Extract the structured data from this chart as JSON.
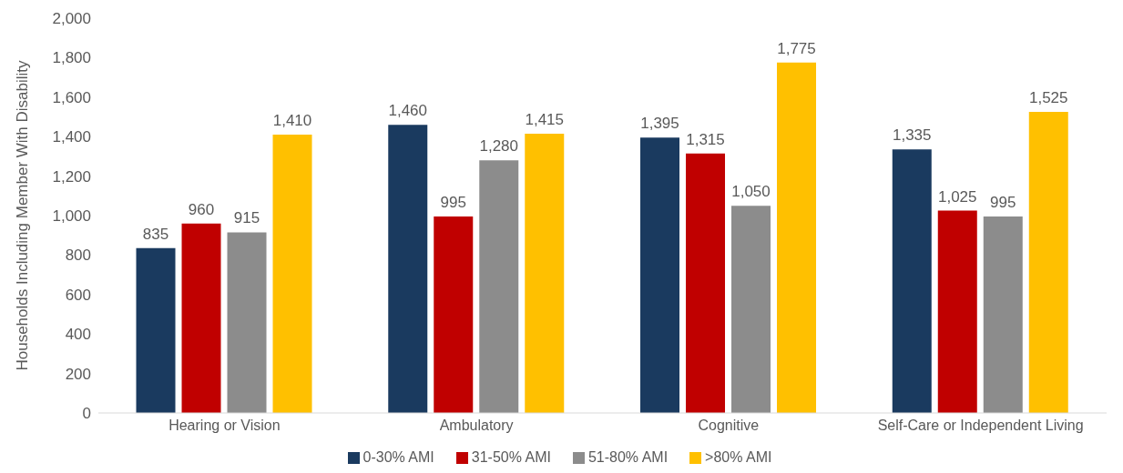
{
  "chart_data": {
    "type": "bar",
    "ylabel": "Households Including Member With Disability",
    "categories": [
      "Hearing or Vision",
      "Ambulatory",
      "Cognitive",
      "Self-Care or Independent Living"
    ],
    "series": [
      {
        "name": "0-30% AMI",
        "color": "#1a3a5f",
        "values": [
          835,
          1460,
          1395,
          1335
        ],
        "value_labels": [
          "835",
          "1,460",
          "1,395",
          "1,335"
        ]
      },
      {
        "name": "31-50% AMI",
        "color": "#c00000",
        "values": [
          960,
          995,
          1315,
          1025
        ],
        "value_labels": [
          "960",
          "995",
          "1,315",
          "1,025"
        ]
      },
      {
        "name": "51-80% AMI",
        "color": "#8c8c8c",
        "values": [
          915,
          1280,
          1050,
          995
        ],
        "value_labels": [
          "915",
          "1,280",
          "1,050",
          "995"
        ]
      },
      {
        "name": ">80% AMI",
        "color": "#ffc000",
        "values": [
          1410,
          1415,
          1775,
          1525
        ],
        "value_labels": [
          "1,410",
          "1,415",
          "1,775",
          "1,525"
        ]
      }
    ],
    "ylim": [
      0,
      2000
    ],
    "yticks": [
      0,
      200,
      400,
      600,
      800,
      {
        "value": 1000,
        "label": "1,000"
      },
      {
        "value": 1200,
        "label": "1,200"
      },
      {
        "value": 1400,
        "label": "1,400"
      },
      {
        "value": 1600,
        "label": "1,600"
      },
      {
        "value": 1800,
        "label": "1,800"
      },
      {
        "value": 2000,
        "label": "2,000"
      }
    ],
    "legend": "bottom"
  }
}
